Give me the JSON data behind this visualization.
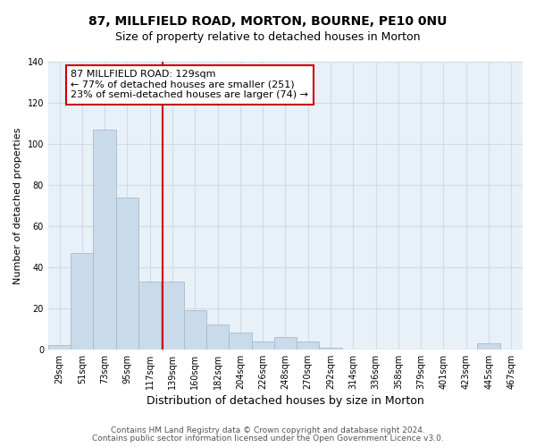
{
  "title": "87, MILLFIELD ROAD, MORTON, BOURNE, PE10 0NU",
  "subtitle": "Size of property relative to detached houses in Morton",
  "xlabel": "Distribution of detached houses by size in Morton",
  "ylabel": "Number of detached properties",
  "categories": [
    "29sqm",
    "51sqm",
    "73sqm",
    "95sqm",
    "117sqm",
    "139sqm",
    "160sqm",
    "182sqm",
    "204sqm",
    "226sqm",
    "248sqm",
    "270sqm",
    "292sqm",
    "314sqm",
    "336sqm",
    "358sqm",
    "379sqm",
    "401sqm",
    "423sqm",
    "445sqm",
    "467sqm"
  ],
  "values": [
    2,
    47,
    107,
    74,
    33,
    33,
    19,
    12,
    8,
    4,
    6,
    4,
    1,
    0,
    0,
    0,
    0,
    0,
    0,
    3,
    0
  ],
  "bar_color": "#c9daea",
  "bar_edge_color": "#aabbcc",
  "vline_color": "#cc0000",
  "annotation_text": "87 MILLFIELD ROAD: 129sqm\n← 77% of detached houses are smaller (251)\n23% of semi-detached houses are larger (74) →",
  "annotation_box_color": "#ffffff",
  "annotation_box_edge": "#cc0000",
  "ylim": [
    0,
    140
  ],
  "yticks": [
    0,
    20,
    40,
    60,
    80,
    100,
    120,
    140
  ],
  "grid_color": "#d0dce8",
  "footer1": "Contains HM Land Registry data © Crown copyright and database right 2024.",
  "footer2": "Contains public sector information licensed under the Open Government Licence v3.0.",
  "title_fontsize": 10,
  "subtitle_fontsize": 9,
  "xlabel_fontsize": 9,
  "ylabel_fontsize": 8,
  "tick_fontsize": 7,
  "annotation_fontsize": 8,
  "footer_fontsize": 6.5,
  "bg_color": "#ffffff",
  "plot_bg_color": "#e8f0f8"
}
